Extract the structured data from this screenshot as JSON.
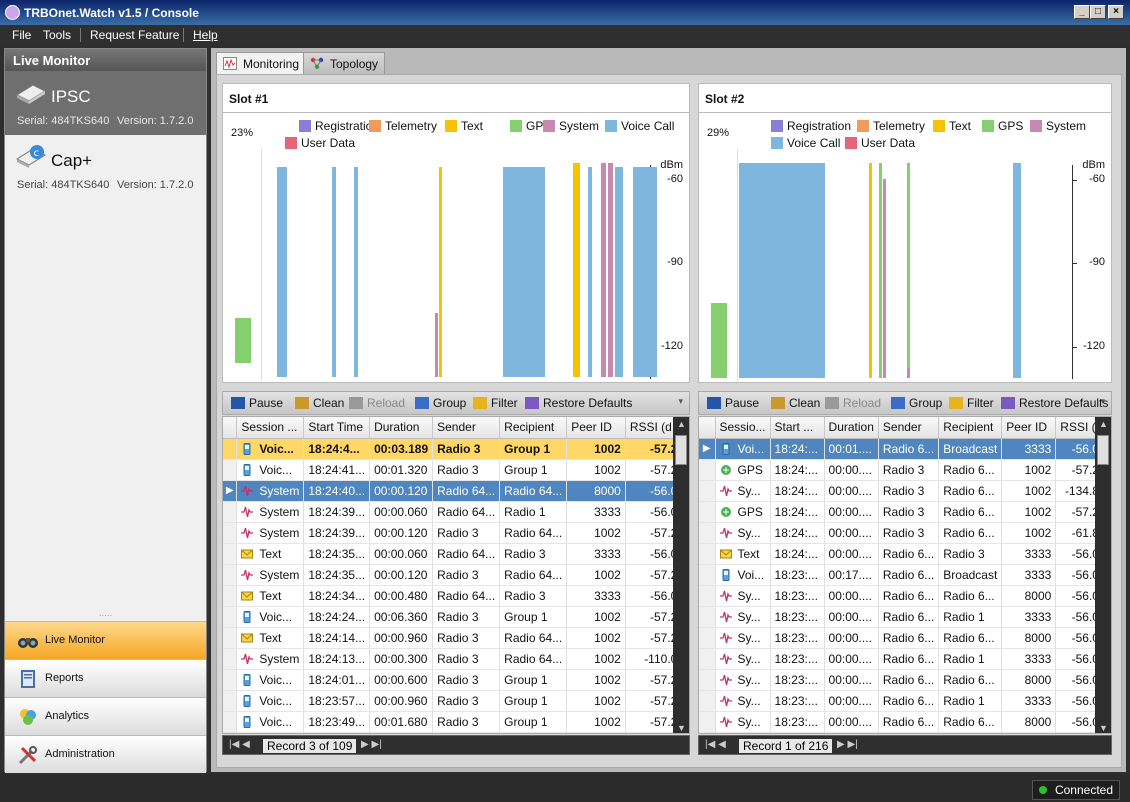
{
  "window": {
    "title": "TRBOnet.Watch v1.5 / Console"
  },
  "menu": [
    "File",
    "Tools",
    "Request Feature",
    "Help"
  ],
  "sidebar": {
    "header": "Live Monitor",
    "devices": [
      {
        "name": "IPSC",
        "serial": "Serial: 484TKS640",
        "version": "Version: 1.7.2.0"
      },
      {
        "name": "Cap+",
        "serial": "Serial: 484TKS640",
        "version": "Version: 1.7.2.0"
      }
    ],
    "nav": [
      "Live Monitor",
      "Reports",
      "Analytics",
      "Administration"
    ]
  },
  "tabs": [
    "Monitoring",
    "Topology"
  ],
  "legend": [
    "Registration",
    "Telemetry",
    "Text",
    "GPS",
    "System",
    "Voice Call",
    "User Data"
  ],
  "colors": {
    "Registration": "#8a7fd6",
    "Telemetry": "#f09a5c",
    "Text": "#f5c300",
    "GPS": "#86cf6f",
    "System": "#c889b1",
    "Voice Call": "#7fb6dd",
    "User Data": "#e5647a",
    "highlight": "#ffd766",
    "selected": "#4f86c0"
  },
  "toolbar": {
    "pause": "Pause",
    "clean": "Clean",
    "reload": "Reload",
    "group": "Group",
    "filter": "Filter",
    "restore": "Restore Defaults"
  },
  "slot1": {
    "title": "Slot #1",
    "load": "23%",
    "unit": "dBm",
    "ticks": [
      "-60",
      "-90",
      "-120"
    ],
    "columns": [
      "Session ...",
      "Start Time",
      "Duration",
      "Sender",
      "Recipient",
      "Peer ID",
      "RSSI (d..."
    ],
    "rows": [
      {
        "type": "Voice Call",
        "session": "Voic...",
        "start": "18:24:4...",
        "duration": "00:03.189",
        "sender": "Radio 3",
        "recipient": "Group 1",
        "peer": "1002",
        "rssi": "-57.21",
        "state": "hl"
      },
      {
        "type": "Voice Call",
        "session": "Voic...",
        "start": "18:24:41...",
        "duration": "00:01.320",
        "sender": "Radio 3",
        "recipient": "Group 1",
        "peer": "1002",
        "rssi": "-57.22"
      },
      {
        "type": "System",
        "session": "System",
        "start": "18:24:40...",
        "duration": "00:00.120",
        "sender": "Radio 64...",
        "recipient": "Radio 64...",
        "peer": "8000",
        "rssi": "-56.00",
        "state": "sel"
      },
      {
        "type": "System",
        "session": "System",
        "start": "18:24:39...",
        "duration": "00:00.060",
        "sender": "Radio 64...",
        "recipient": "Radio 1",
        "peer": "3333",
        "rssi": "-56.00"
      },
      {
        "type": "System",
        "session": "System",
        "start": "18:24:39...",
        "duration": "00:00.120",
        "sender": "Radio 3",
        "recipient": "Radio 64...",
        "peer": "1002",
        "rssi": "-57.21"
      },
      {
        "type": "Text",
        "session": "Text",
        "start": "18:24:35...",
        "duration": "00:00.060",
        "sender": "Radio 64...",
        "recipient": "Radio 3",
        "peer": "3333",
        "rssi": "-56.00"
      },
      {
        "type": "System",
        "session": "System",
        "start": "18:24:35...",
        "duration": "00:00.120",
        "sender": "Radio 3",
        "recipient": "Radio 64...",
        "peer": "1002",
        "rssi": "-57.21"
      },
      {
        "type": "Text",
        "session": "Text",
        "start": "18:24:34...",
        "duration": "00:00.480",
        "sender": "Radio 64...",
        "recipient": "Radio 3",
        "peer": "3333",
        "rssi": "-56.00"
      },
      {
        "type": "Voice Call",
        "session": "Voic...",
        "start": "18:24:24...",
        "duration": "00:06.360",
        "sender": "Radio 3",
        "recipient": "Group 1",
        "peer": "1002",
        "rssi": "-57.22"
      },
      {
        "type": "Text",
        "session": "Text",
        "start": "18:24:14...",
        "duration": "00:00.960",
        "sender": "Radio 3",
        "recipient": "Radio 64...",
        "peer": "1002",
        "rssi": "-57.21"
      },
      {
        "type": "System",
        "session": "System",
        "start": "18:24:13...",
        "duration": "00:00.300",
        "sender": "Radio 3",
        "recipient": "Radio 64...",
        "peer": "1002",
        "rssi": "-110.07"
      },
      {
        "type": "Voice Call",
        "session": "Voic...",
        "start": "18:24:01...",
        "duration": "00:00.600",
        "sender": "Radio 3",
        "recipient": "Group 1",
        "peer": "1002",
        "rssi": "-57.22"
      },
      {
        "type": "Voice Call",
        "session": "Voic...",
        "start": "18:23:57...",
        "duration": "00:00.960",
        "sender": "Radio 3",
        "recipient": "Group 1",
        "peer": "1002",
        "rssi": "-57.22"
      },
      {
        "type": "Voice Call",
        "session": "Voic...",
        "start": "18:23:49...",
        "duration": "00:01.680",
        "sender": "Radio 3",
        "recipient": "Group 1",
        "peer": "1002",
        "rssi": "-57.22"
      }
    ],
    "record": "Record 3 of 109"
  },
  "slot2": {
    "title": "Slot #2",
    "load": "29%",
    "unit": "dBm",
    "ticks": [
      "-60",
      "-90",
      "-120"
    ],
    "columns": [
      "Sessio...",
      "Start ...",
      "Duration",
      "Sender",
      "Recipient",
      "Peer ID",
      "RSSI (..."
    ],
    "rows": [
      {
        "type": "Voice Call",
        "session": "Voi...",
        "start": "18:24:...",
        "duration": "00:01....",
        "sender": "Radio 6...",
        "recipient": "Broadcast",
        "peer": "3333",
        "rssi": "-56.00",
        "state": "sel"
      },
      {
        "type": "GPS",
        "session": "GPS",
        "start": "18:24:...",
        "duration": "00:00....",
        "sender": "Radio 3",
        "recipient": "Radio 6...",
        "peer": "1002",
        "rssi": "-57.21"
      },
      {
        "type": "System",
        "session": "Sy...",
        "start": "18:24:...",
        "duration": "00:00....",
        "sender": "Radio 3",
        "recipient": "Radio 6...",
        "peer": "1002",
        "rssi": "-134.85"
      },
      {
        "type": "GPS",
        "session": "GPS",
        "start": "18:24:...",
        "duration": "00:00....",
        "sender": "Radio 3",
        "recipient": "Radio 6...",
        "peer": "1002",
        "rssi": "-57.21"
      },
      {
        "type": "System",
        "session": "Sy...",
        "start": "18:24:...",
        "duration": "00:00....",
        "sender": "Radio 3",
        "recipient": "Radio 6...",
        "peer": "1002",
        "rssi": "-61.84"
      },
      {
        "type": "Text",
        "session": "Text",
        "start": "18:24:...",
        "duration": "00:00....",
        "sender": "Radio 6...",
        "recipient": "Radio 3",
        "peer": "3333",
        "rssi": "-56.00"
      },
      {
        "type": "Voice Call",
        "session": "Voi...",
        "start": "18:23:...",
        "duration": "00:17....",
        "sender": "Radio 6...",
        "recipient": "Broadcast",
        "peer": "3333",
        "rssi": "-56.00"
      },
      {
        "type": "System",
        "session": "Sy...",
        "start": "18:23:...",
        "duration": "00:00....",
        "sender": "Radio 6...",
        "recipient": "Radio 6...",
        "peer": "8000",
        "rssi": "-56.00"
      },
      {
        "type": "System",
        "session": "Sy...",
        "start": "18:23:...",
        "duration": "00:00....",
        "sender": "Radio 6...",
        "recipient": "Radio 1",
        "peer": "3333",
        "rssi": "-56.00"
      },
      {
        "type": "System",
        "session": "Sy...",
        "start": "18:23:...",
        "duration": "00:00....",
        "sender": "Radio 6...",
        "recipient": "Radio 6...",
        "peer": "8000",
        "rssi": "-56.00"
      },
      {
        "type": "System",
        "session": "Sy...",
        "start": "18:23:...",
        "duration": "00:00....",
        "sender": "Radio 6...",
        "recipient": "Radio 1",
        "peer": "3333",
        "rssi": "-56.00"
      },
      {
        "type": "System",
        "session": "Sy...",
        "start": "18:23:...",
        "duration": "00:00....",
        "sender": "Radio 6...",
        "recipient": "Radio 6...",
        "peer": "8000",
        "rssi": "-56.00"
      },
      {
        "type": "System",
        "session": "Sy...",
        "start": "18:23:...",
        "duration": "00:00....",
        "sender": "Radio 6...",
        "recipient": "Radio 1",
        "peer": "3333",
        "rssi": "-56.00"
      },
      {
        "type": "System",
        "session": "Sy...",
        "start": "18:23:...",
        "duration": "00:00....",
        "sender": "Radio 6...",
        "recipient": "Radio 6...",
        "peer": "8000",
        "rssi": "-56.00"
      }
    ],
    "record": "Record 1 of 216"
  },
  "status": {
    "connection": "Connected"
  }
}
